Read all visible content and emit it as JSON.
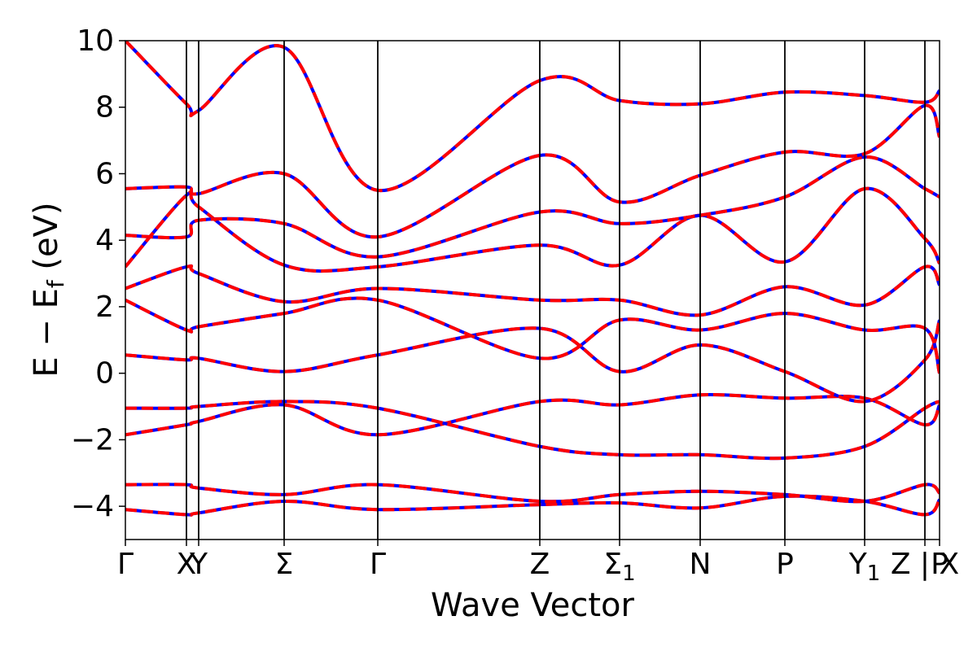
{
  "chart_data": {
    "type": "line",
    "xlabel": "Wave Vector",
    "ylabel": "E − E_f (eV)",
    "ylabel_parts": {
      "main": "E − E",
      "sub": "f",
      "unit": "(eV)"
    },
    "ylim": [
      -5,
      10
    ],
    "yticks": [
      -4,
      -2,
      0,
      2,
      4,
      6,
      8,
      10
    ],
    "ytick_labels": [
      "−4",
      "−2",
      "0",
      "2",
      "4",
      "6",
      "8",
      "10"
    ],
    "xlim": [
      0,
      10
    ],
    "high_symmetry_points": [
      {
        "label": "Γ",
        "x": 0.0
      },
      {
        "label": "X",
        "x": 0.75
      },
      {
        "label": "Y",
        "x": 0.9
      },
      {
        "label": "Σ",
        "x": 1.95
      },
      {
        "label": "Γ",
        "x": 3.1
      },
      {
        "label": "Z",
        "x": 5.09
      },
      {
        "label": "Σ1",
        "x": 6.07
      },
      {
        "label": "N",
        "x": 7.06
      },
      {
        "label": "P",
        "x": 8.1
      },
      {
        "label": "Y1",
        "x": 9.08
      },
      {
        "label": "Z | X",
        "x": 9.82
      },
      {
        "label": "P",
        "x": 10.0
      }
    ],
    "grid": false,
    "series": [
      {
        "color": "#0000ff",
        "style": "solid"
      },
      {
        "color": "#ff0000",
        "style": "dashed"
      }
    ],
    "bands": [
      {
        "x": [
          0,
          0.75,
          0.9,
          1.95,
          3.1,
          5.09,
          6.07,
          7.06,
          8.1,
          9.08,
          9.82,
          10
        ],
        "y": [
          -4.1,
          -4.25,
          -4.2,
          -3.85,
          -4.1,
          -3.95,
          -3.9,
          -4.05,
          -3.7,
          -3.85,
          -4.25,
          -3.8
        ]
      },
      {
        "x": [
          0,
          0.75,
          0.9,
          1.95,
          3.1,
          5.09,
          6.07,
          7.06,
          8.1,
          9.08,
          9.82,
          10
        ],
        "y": [
          -3.35,
          -3.35,
          -3.45,
          -3.65,
          -3.35,
          -3.85,
          -3.65,
          -3.55,
          -3.65,
          -3.85,
          -3.35,
          -3.6
        ]
      },
      {
        "x": [
          0,
          0.75,
          0.9,
          1.95,
          3.1,
          5.09,
          6.07,
          7.06,
          8.1,
          9.08,
          9.82,
          10
        ],
        "y": [
          -1.85,
          -1.55,
          -1.45,
          -0.95,
          -1.85,
          -0.85,
          -0.95,
          -0.65,
          -0.75,
          -0.75,
          -1.55,
          -0.95
        ]
      },
      {
        "x": [
          0,
          0.75,
          0.9,
          1.95,
          3.1,
          5.09,
          6.07,
          7.06,
          8.1,
          9.08,
          9.82,
          10
        ],
        "y": [
          -1.05,
          -1.05,
          -1.0,
          -0.85,
          -1.05,
          -2.2,
          -2.45,
          -2.45,
          -2.55,
          -2.2,
          -1.05,
          -0.85
        ]
      },
      {
        "x": [
          0,
          0.75,
          0.9,
          1.95,
          3.1,
          5.09,
          6.07,
          7.06,
          8.1,
          9.08,
          9.82,
          10
        ],
        "y": [
          0.55,
          0.4,
          0.45,
          0.05,
          0.55,
          1.35,
          0.05,
          0.85,
          0.05,
          -0.85,
          0.4,
          1.6
        ]
      },
      {
        "x": [
          0,
          0.75,
          0.9,
          1.95,
          3.1,
          5.09,
          6.07,
          7.06,
          8.1,
          9.08,
          9.82,
          10
        ],
        "y": [
          2.2,
          1.3,
          1.4,
          1.8,
          2.2,
          0.45,
          1.6,
          1.3,
          1.8,
          1.3,
          1.35,
          0.0
        ]
      },
      {
        "x": [
          0,
          0.75,
          0.9,
          1.95,
          3.1,
          5.09,
          6.07,
          7.06,
          8.1,
          9.08,
          9.82,
          10
        ],
        "y": [
          2.55,
          3.2,
          3.0,
          2.15,
          2.55,
          2.2,
          2.2,
          1.75,
          2.6,
          2.05,
          3.2,
          2.65
        ]
      },
      {
        "x": [
          0,
          0.75,
          0.9,
          1.95,
          3.1,
          5.09,
          6.07,
          7.06,
          8.1,
          9.08,
          9.82,
          10
        ],
        "y": [
          3.2,
          5.35,
          5.0,
          3.25,
          3.2,
          3.85,
          3.25,
          4.75,
          3.35,
          5.55,
          4.05,
          3.3
        ]
      },
      {
        "x": [
          0,
          0.75,
          0.9,
          1.95,
          3.1,
          5.09,
          6.07,
          7.06,
          8.1,
          9.08,
          9.82,
          10
        ],
        "y": [
          4.15,
          4.1,
          4.6,
          4.5,
          3.5,
          4.85,
          4.5,
          4.75,
          5.3,
          6.5,
          5.55,
          5.3
        ]
      },
      {
        "x": [
          0,
          0.75,
          0.9,
          1.95,
          3.1,
          5.09,
          6.07,
          7.06,
          8.1,
          9.08,
          9.82,
          10
        ],
        "y": [
          5.55,
          5.6,
          5.4,
          6.0,
          4.1,
          6.55,
          5.15,
          5.95,
          6.65,
          6.6,
          8.05,
          7.1
        ]
      },
      {
        "x": [
          0,
          0.75,
          0.9,
          1.95,
          3.1,
          5.09,
          6.07,
          7.06,
          8.1,
          9.08,
          9.82,
          10
        ],
        "y": [
          10.0,
          8.1,
          7.9,
          9.8,
          5.5,
          8.8,
          8.2,
          8.1,
          8.45,
          8.35,
          8.15,
          8.5
        ]
      }
    ]
  }
}
